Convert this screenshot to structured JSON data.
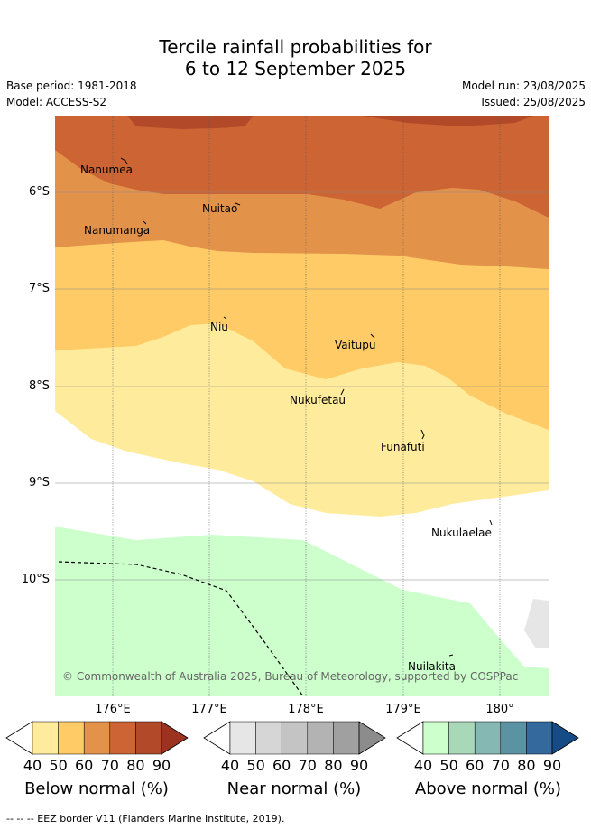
{
  "title_line1": "Tercile rainfall probabilities for",
  "title_line2": "6 to 12 September 2025",
  "base_period": "Base period: 1981-2018",
  "model": "Model: ACCESS-S2",
  "model_run": "Model run: 23/08/2025",
  "issued": "Issued: 25/08/2025",
  "lat_labels": [
    "6°S",
    "7°S",
    "8°S",
    "9°S",
    "10°S"
  ],
  "lon_labels": [
    "176°E",
    "177°E",
    "178°E",
    "179°E",
    "180°"
  ],
  "places": [
    "Nanumea",
    "Nuitao",
    "Nanumanga",
    "Niu",
    "Vaitupu",
    "Nukufetau",
    "Funafuti",
    "Nukulaelae",
    "Nuilakita"
  ],
  "copyright": "© Commonwealth of Australia 2025, Bureau of Meteorology, supported by COSPPac",
  "colorbars": [
    {
      "label": "Below normal (%)",
      "ticks": [
        "40",
        "50",
        "60",
        "70",
        "80",
        "90"
      ],
      "colors": [
        "#ffeb9c",
        "#ffcb66",
        "#e3924a",
        "#cd6433",
        "#b24a29",
        "#9b3320"
      ]
    },
    {
      "label": "Near normal (%)",
      "ticks": [
        "40",
        "50",
        "60",
        "70",
        "80",
        "90"
      ],
      "colors": [
        "#e6e6e6",
        "#d6d6d6",
        "#c4c4c4",
        "#b3b3b3",
        "#a0a0a0",
        "#8c8c8c"
      ]
    },
    {
      "label": "Above normal (%)",
      "ticks": [
        "40",
        "50",
        "60",
        "70",
        "80",
        "90"
      ],
      "colors": [
        "#ccffcc",
        "#a8d8b8",
        "#85b8b3",
        "#5c93a3",
        "#34699e",
        "#154c86"
      ]
    }
  ],
  "footer": "--  --  -- EEZ border V11 (Flanders Marine Institute, 2019)."
}
